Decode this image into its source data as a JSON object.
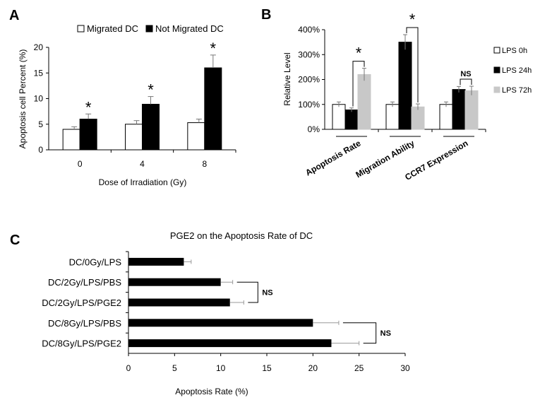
{
  "chart_data": [
    {
      "panel": "A",
      "type": "bar",
      "ylabel": "Apoptosis cell Percent (%)",
      "xlabel": "Dose of Irradiation (Gy)",
      "ylim": [
        0,
        20
      ],
      "yticks": [
        "0",
        "5",
        "10",
        "15",
        "20"
      ],
      "categories": [
        "0",
        "4",
        "8"
      ],
      "series": [
        {
          "name": "Migrated DC",
          "color": "#ffffff",
          "values": [
            4.0,
            5.0,
            5.3
          ],
          "errors": [
            0.5,
            0.7,
            0.7
          ]
        },
        {
          "name": "Not Migrated DC",
          "color": "#000000",
          "values": [
            6.0,
            8.9,
            16.0
          ],
          "errors": [
            1.0,
            1.5,
            2.5
          ]
        }
      ],
      "significance": [
        "*",
        "*",
        "*"
      ]
    },
    {
      "panel": "B",
      "type": "bar",
      "ylabel": "Relative Level",
      "ylim": [
        0,
        400
      ],
      "yticks": [
        "0%",
        "100%",
        "200%",
        "300%",
        "400%"
      ],
      "categories": [
        "Apoptosis Rate",
        "Migration Ability",
        "CCR7 Expression"
      ],
      "series": [
        {
          "name": "LPS 0h",
          "color": "#ffffff",
          "values": [
            100,
            100,
            100
          ],
          "errors": [
            10,
            10,
            10
          ]
        },
        {
          "name": "LPS 24h",
          "color": "#000000",
          "values": [
            78,
            350,
            160
          ],
          "errors": [
            8,
            30,
            12
          ]
        },
        {
          "name": "LPS 72h",
          "color": "#c8c8c8",
          "values": [
            220,
            90,
            155
          ],
          "errors": [
            25,
            12,
            18
          ]
        }
      ],
      "significance": [
        "*",
        "*",
        "NS"
      ]
    },
    {
      "panel": "C",
      "type": "bar",
      "orientation": "horizontal",
      "title": "PGE2 on the Apoptosis Rate of DC",
      "xlabel": "Apoptosis Rate (%)",
      "xlim": [
        0,
        30
      ],
      "xticks": [
        "0",
        "5",
        "10",
        "15",
        "20",
        "25",
        "30"
      ],
      "categories": [
        "DC/0Gy/LPS",
        "DC/2Gy/LPS/PBS",
        "DC/2Gy/LPS/PGE2",
        "DC/8Gy/LPS/PBS",
        "DC/8Gy/LPS/PGE2"
      ],
      "values": [
        6.0,
        10.0,
        11.0,
        20.0,
        22.0
      ],
      "errors": [
        0.8,
        1.3,
        1.5,
        2.8,
        3.0
      ],
      "comparisons": [
        {
          "between": [
            1,
            2
          ],
          "label": "NS"
        },
        {
          "between": [
            3,
            4
          ],
          "label": "NS"
        }
      ]
    }
  ],
  "labels": {
    "panelA": "A",
    "panelB": "B",
    "panelC": "C"
  }
}
